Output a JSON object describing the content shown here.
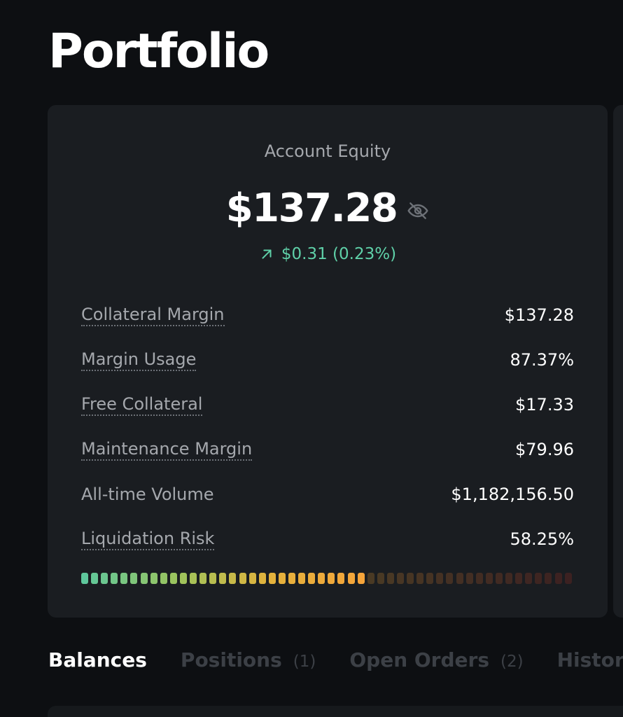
{
  "page": {
    "title": "Portfolio"
  },
  "equity_card": {
    "label": "Account Equity",
    "value": "$137.28",
    "change": "$0.31 (0.23%)",
    "change_icon": "arrow-up-right-icon",
    "visibility_icon": "eye-off-icon",
    "change_color": "#5fd0a8"
  },
  "stats": [
    {
      "label": "Collateral Margin",
      "value": "$137.28"
    },
    {
      "label": "Margin Usage",
      "value": "87.37%"
    },
    {
      "label": "Free Collateral",
      "value": "$17.33"
    },
    {
      "label": "Maintenance Margin",
      "value": "$79.96"
    },
    {
      "label": "All-time Volume",
      "value": "$1,182,156.50"
    },
    {
      "label": "Liquidation Risk",
      "value": "58.25%"
    }
  ],
  "liquidation_risk_meter": {
    "fraction": 0.5825,
    "total_segments": 50,
    "gradient_colors": [
      "#5ec79c",
      "#9cc45d",
      "#e3b23c",
      "#f5a43a"
    ],
    "inactive_colors": [
      "#4a3a24",
      "#3c2121"
    ]
  },
  "tabs": [
    {
      "label": "Balances",
      "count": "",
      "active": true
    },
    {
      "label": "Positions",
      "count": "(1)",
      "active": false
    },
    {
      "label": "Open Orders",
      "count": "(2)",
      "active": false
    },
    {
      "label": "History",
      "count": "",
      "active": false
    }
  ]
}
